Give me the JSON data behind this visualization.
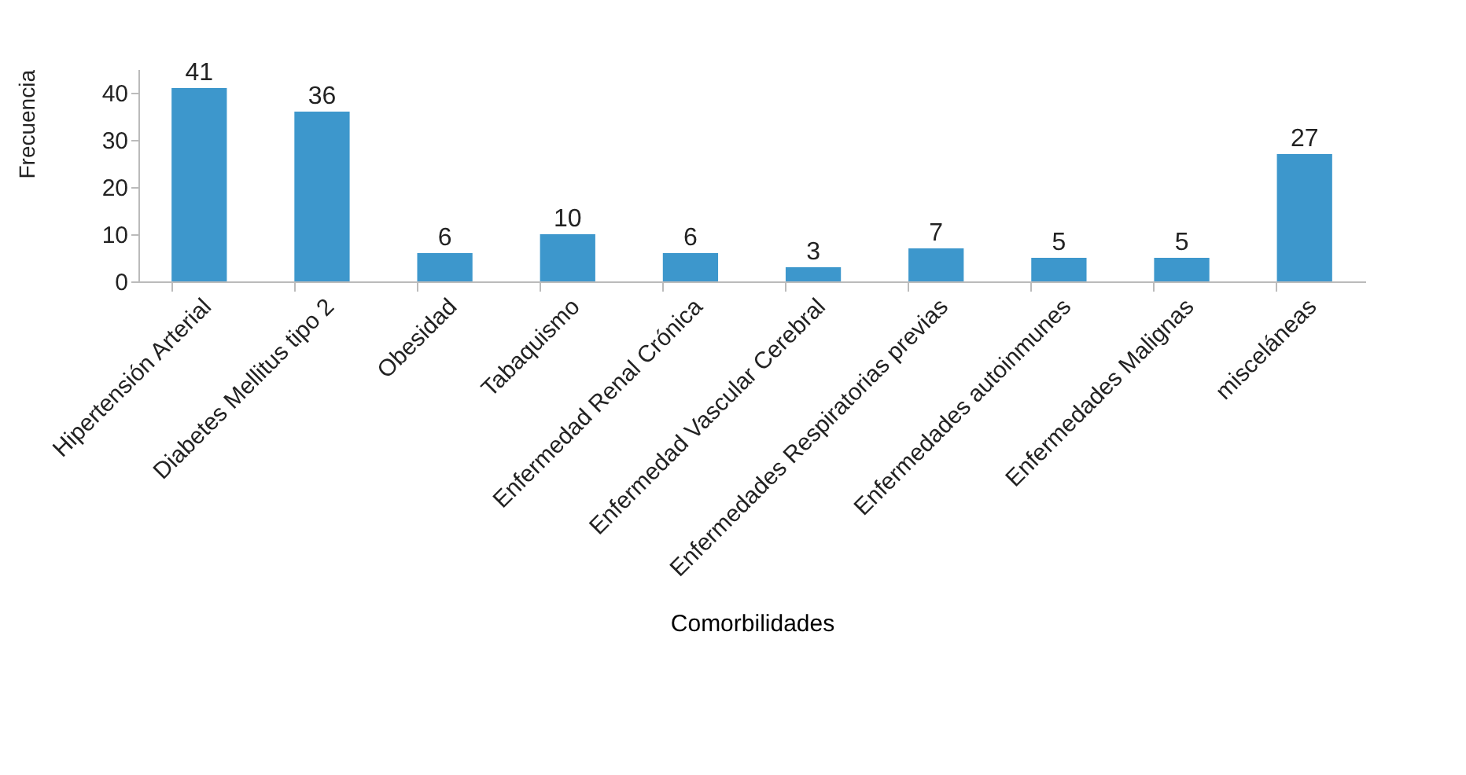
{
  "chart_data": {
    "type": "bar",
    "xlabel": "Comorbilidades",
    "ylabel": "Frecuencia",
    "categories": [
      "Hipertensión Arterial",
      "Diabetes Mellitus tipo 2",
      "Obesidad",
      "Tabaquismo",
      "Enfermedad Renal Crónica",
      "Enfermedad Vascular Cerebral",
      "Enfermedades Respiratorias previas",
      "Enfermedades autoinmunes",
      "Enfermedades Malignas",
      "misceláneas"
    ],
    "values": [
      41,
      36,
      6,
      10,
      6,
      3,
      7,
      5,
      5,
      27
    ],
    "color": "#3d97cc",
    "ylim": [
      0,
      45
    ],
    "yticks": [
      0,
      10,
      20,
      30,
      40
    ],
    "grid": false,
    "data_labels": true
  }
}
